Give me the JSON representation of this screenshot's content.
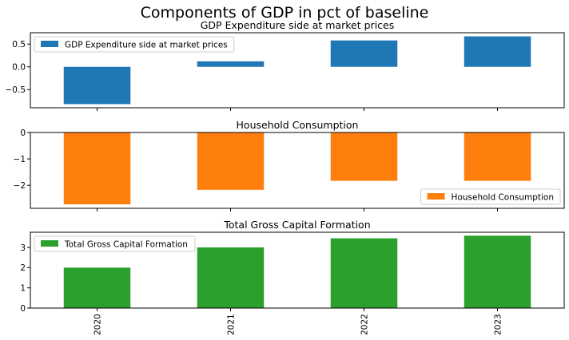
{
  "figure": {
    "title": "Components of GDP in pct of baseline"
  },
  "chart_data": [
    {
      "type": "bar",
      "title": "GDP Expenditure side at market prices",
      "categories": [
        "2020",
        "2021",
        "2022",
        "2023"
      ],
      "series": [
        {
          "name": "GDP Expenditure side at market prices",
          "values": [
            -0.82,
            0.12,
            0.58,
            0.67
          ],
          "color": "#1f77b4"
        }
      ],
      "ylim": [
        -0.9,
        0.75
      ],
      "yticks": [
        -0.5,
        0.0,
        0.5
      ],
      "ytick_labels": [
        "−0.5",
        "0.0",
        "0.5"
      ],
      "show_xtick_labels": false,
      "legend_position": "upper-left",
      "grid": false
    },
    {
      "type": "bar",
      "title": "Household Consumption",
      "categories": [
        "2020",
        "2021",
        "2022",
        "2023"
      ],
      "series": [
        {
          "name": "Household Consumption",
          "values": [
            -2.72,
            -2.17,
            -1.83,
            -1.83
          ],
          "color": "#ff7f0e"
        }
      ],
      "ylim": [
        -2.87,
        0
      ],
      "yticks": [
        -2,
        -1,
        0
      ],
      "ytick_labels": [
        "−2",
        "−1",
        "0"
      ],
      "show_xtick_labels": false,
      "legend_position": "lower-right",
      "grid": false
    },
    {
      "type": "bar",
      "title": "Total Gross Capital Formation",
      "categories": [
        "2020",
        "2021",
        "2022",
        "2023"
      ],
      "series": [
        {
          "name": "Total Gross Capital Formation",
          "values": [
            2.0,
            3.0,
            3.45,
            3.58
          ],
          "color": "#2ca02c"
        }
      ],
      "ylim": [
        0,
        3.75
      ],
      "yticks": [
        0,
        1,
        2,
        3
      ],
      "ytick_labels": [
        "0",
        "1",
        "2",
        "3"
      ],
      "show_xtick_labels": true,
      "legend_position": "upper-left",
      "grid": false
    }
  ]
}
